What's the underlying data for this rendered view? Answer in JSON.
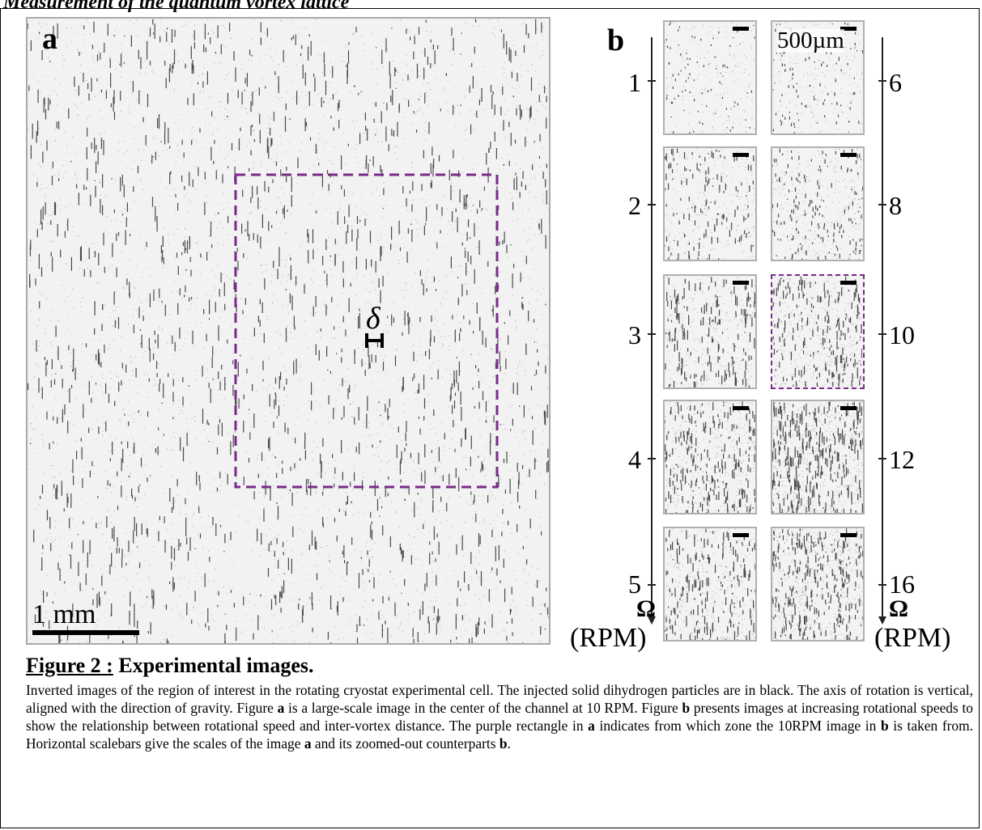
{
  "header": {
    "title": "Measurement of the quantum vortex lattice"
  },
  "figure": {
    "panel_a": {
      "letter": "a",
      "delta_symbol": "δ",
      "scale_label": "1 mm",
      "roi_color": "#7a2a8a"
    },
    "panel_b": {
      "letter": "b",
      "scale_label": "500µm",
      "left_speeds": [
        "1",
        "2",
        "3",
        "4",
        "5"
      ],
      "right_speeds": [
        "6",
        "8",
        "10",
        "12",
        "16"
      ],
      "axis_symbol": "Ω",
      "unit_label": "(RPM)",
      "highlight_speed": "10"
    }
  },
  "caption": {
    "figure_label": "Figure 2 :",
    "title": "Experimental images.",
    "body_parts": [
      "Inverted images of the region of interest in the rotating cryostat experimental cell. The injected solid dihydrogen particles are in black. The axis of rotation is vertical, aligned with the direction of gravity. Figure ",
      "a",
      " is a large-scale image in the center of the channel at 10 RPM. Figure ",
      "b",
      " presents images at increasing rotational speeds to show the relationship between rotational speed and inter-vortex distance. The purple rectangle in ",
      "a",
      " indicates from which zone the 10RPM image in ",
      "b",
      " is taken from. Horizontal scalebars give the scales of the image ",
      "a",
      " and its zoomed-out counterparts ",
      "b",
      "."
    ]
  }
}
